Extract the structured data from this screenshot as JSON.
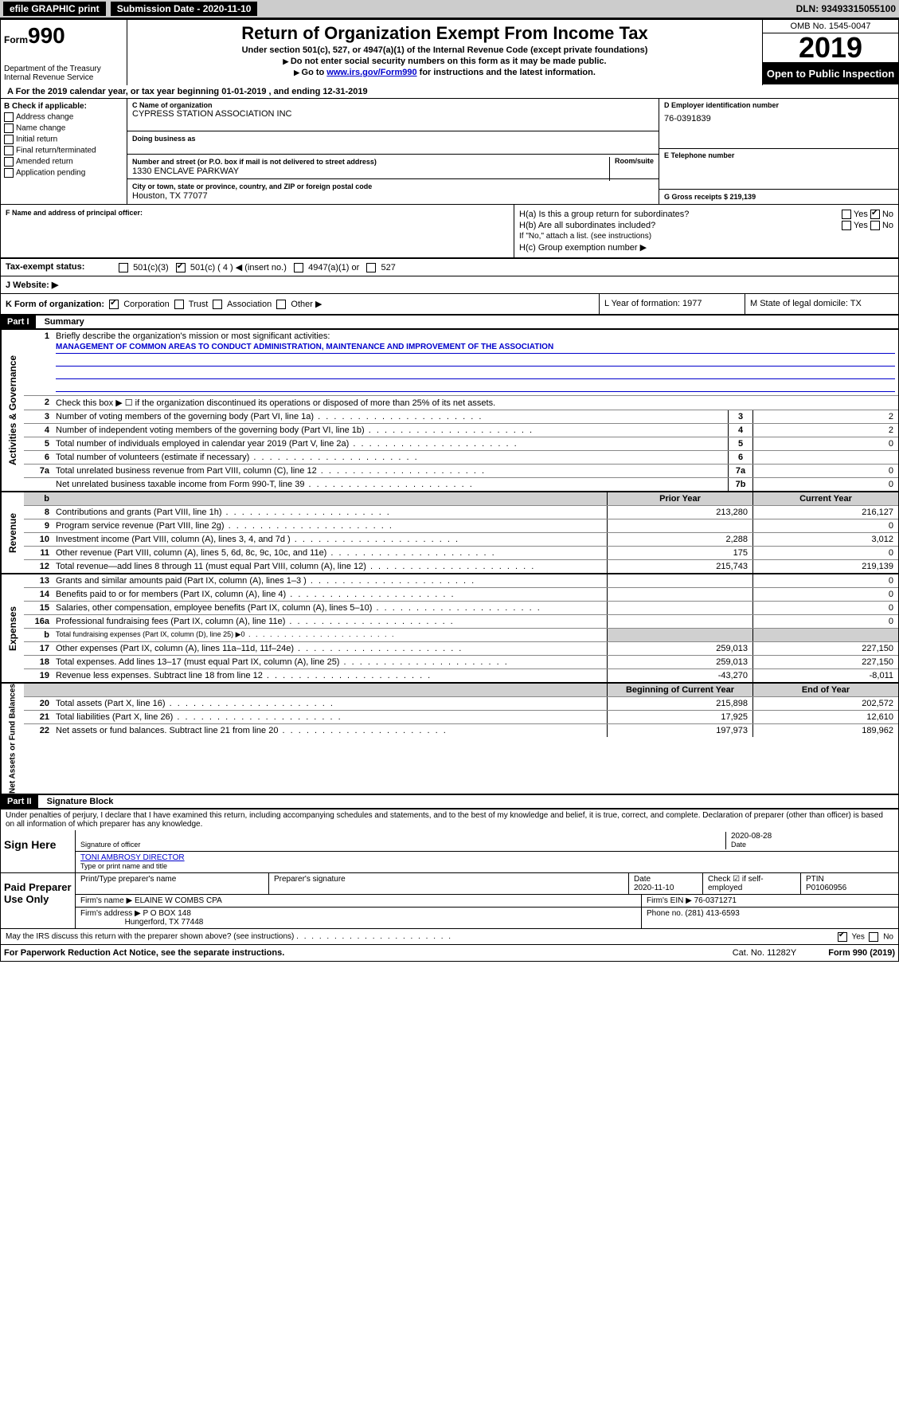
{
  "topbar": {
    "efile": "efile GRAPHIC print",
    "submission_label": "Submission Date - 2020-11-10",
    "dln": "DLN: 93493315055100"
  },
  "header": {
    "form_word": "Form",
    "form_num": "990",
    "title": "Return of Organization Exempt From Income Tax",
    "subtitle1": "Under section 501(c), 527, or 4947(a)(1) of the Internal Revenue Code (except private foundations)",
    "subtitle2": "Do not enter social security numbers on this form as it may be made public.",
    "subtitle3_pre": "Go to ",
    "subtitle3_link": "www.irs.gov/Form990",
    "subtitle3_post": " for instructions and the latest information.",
    "dept": "Department of the Treasury\nInternal Revenue Service",
    "omb": "OMB No. 1545-0047",
    "year": "2019",
    "open": "Open to Public Inspection"
  },
  "tax_year": {
    "text_a": "For the 2019 calendar year, or tax year beginning 01-01-2019",
    "text_b": ", and ending 12-31-2019"
  },
  "section_b": {
    "label": "B Check if applicable:",
    "items": [
      "Address change",
      "Name change",
      "Initial return",
      "Final return/terminated",
      "Amended return",
      "Application pending"
    ],
    "c_label": "C Name of organization",
    "c_name": "CYPRESS STATION ASSOCIATION INC",
    "dba_label": "Doing business as",
    "addr_label": "Number and street (or P.O. box if mail is not delivered to street address)",
    "addr": "1330 ENCLAVE PARKWAY",
    "room": "Room/suite",
    "city_label": "City or town, state or province, country, and ZIP or foreign postal code",
    "city": "Houston, TX  77077",
    "d_label": "D Employer identification number",
    "d_val": "76-0391839",
    "e_label": "E Telephone number",
    "g_label": "G Gross receipts $ 219,139"
  },
  "section_f": {
    "f_label": "F Name and address of principal officer:",
    "ha": "H(a)  Is this a group return for subordinates?",
    "hb": "H(b)  Are all subordinates included?",
    "hb_note": "If \"No,\" attach a list. (see instructions)",
    "hc": "H(c)  Group exemption number ▶",
    "yes": "Yes",
    "no": "No"
  },
  "section_i": {
    "label": "Tax-exempt status:",
    "opts": [
      "501(c)(3)",
      "501(c) ( 4 ) ◀ (insert no.)",
      "4947(a)(1) or",
      "527"
    ],
    "checked": 1
  },
  "section_j": {
    "label": "J   Website: ▶"
  },
  "section_k": {
    "k": "K Form of organization:",
    "opts": [
      "Corporation",
      "Trust",
      "Association",
      "Other ▶"
    ],
    "checked": 0,
    "l_label": "L Year of formation: 1977",
    "m_label": "M State of legal domicile: TX"
  },
  "part1": {
    "header": "Part I",
    "title": "Summary",
    "q1": "Briefly describe the organization's mission or most significant activities:",
    "mission": "MANAGEMENT OF COMMON AREAS TO CONDUCT ADMINISTRATION, MAINTENANCE AND IMPROVEMENT OF THE ASSOCIATION",
    "q2": "Check this box ▶ ☐  if the organization discontinued its operations or disposed of more than 25% of its net assets.",
    "side_gov": "Activities & Governance",
    "side_rev": "Revenue",
    "side_exp": "Expenses",
    "side_net": "Net Assets or Fund Balances",
    "lines_gov": [
      {
        "n": "3",
        "d": "Number of voting members of the governing body (Part VI, line 1a)",
        "b": "3",
        "v": "2"
      },
      {
        "n": "4",
        "d": "Number of independent voting members of the governing body (Part VI, line 1b)",
        "b": "4",
        "v": "2"
      },
      {
        "n": "5",
        "d": "Total number of individuals employed in calendar year 2019 (Part V, line 2a)",
        "b": "5",
        "v": "0"
      },
      {
        "n": "6",
        "d": "Total number of volunteers (estimate if necessary)",
        "b": "6",
        "v": ""
      },
      {
        "n": "7a",
        "d": "Total unrelated business revenue from Part VIII, column (C), line 12",
        "b": "7a",
        "v": "0"
      },
      {
        "n": "",
        "d": "Net unrelated business taxable income from Form 990-T, line 39",
        "b": "7b",
        "v": "0"
      }
    ],
    "col_prior": "Prior Year",
    "col_current": "Current Year",
    "lines_rev": [
      {
        "n": "8",
        "d": "Contributions and grants (Part VIII, line 1h)",
        "p": "213,280",
        "c": "216,127"
      },
      {
        "n": "9",
        "d": "Program service revenue (Part VIII, line 2g)",
        "p": "",
        "c": "0"
      },
      {
        "n": "10",
        "d": "Investment income (Part VIII, column (A), lines 3, 4, and 7d )",
        "p": "2,288",
        "c": "3,012"
      },
      {
        "n": "11",
        "d": "Other revenue (Part VIII, column (A), lines 5, 6d, 8c, 9c, 10c, and 11e)",
        "p": "175",
        "c": "0"
      },
      {
        "n": "12",
        "d": "Total revenue—add lines 8 through 11 (must equal Part VIII, column (A), line 12)",
        "p": "215,743",
        "c": "219,139"
      }
    ],
    "lines_exp": [
      {
        "n": "13",
        "d": "Grants and similar amounts paid (Part IX, column (A), lines 1–3 )",
        "p": "",
        "c": "0"
      },
      {
        "n": "14",
        "d": "Benefits paid to or for members (Part IX, column (A), line 4)",
        "p": "",
        "c": "0"
      },
      {
        "n": "15",
        "d": "Salaries, other compensation, employee benefits (Part IX, column (A), lines 5–10)",
        "p": "",
        "c": "0"
      },
      {
        "n": "16a",
        "d": "Professional fundraising fees (Part IX, column (A), line 11e)",
        "p": "",
        "c": "0"
      },
      {
        "n": "b",
        "d": "Total fundraising expenses (Part IX, column (D), line 25) ▶0",
        "p": "grey",
        "c": "grey"
      },
      {
        "n": "17",
        "d": "Other expenses (Part IX, column (A), lines 11a–11d, 11f–24e)",
        "p": "259,013",
        "c": "227,150"
      },
      {
        "n": "18",
        "d": "Total expenses. Add lines 13–17 (must equal Part IX, column (A), line 25)",
        "p": "259,013",
        "c": "227,150"
      },
      {
        "n": "19",
        "d": "Revenue less expenses. Subtract line 18 from line 12",
        "p": "-43,270",
        "c": "-8,011"
      }
    ],
    "col_begin": "Beginning of Current Year",
    "col_end": "End of Year",
    "lines_net": [
      {
        "n": "20",
        "d": "Total assets (Part X, line 16)",
        "p": "215,898",
        "c": "202,572"
      },
      {
        "n": "21",
        "d": "Total liabilities (Part X, line 26)",
        "p": "17,925",
        "c": "12,610"
      },
      {
        "n": "22",
        "d": "Net assets or fund balances. Subtract line 21 from line 20",
        "p": "197,973",
        "c": "189,962"
      }
    ]
  },
  "part2": {
    "header": "Part II",
    "title": "Signature Block",
    "perjury": "Under penalties of perjury, I declare that I have examined this return, including accompanying schedules and statements, and to the best of my knowledge and belief, it is true, correct, and complete. Declaration of preparer (other than officer) is based on all information of which preparer has any knowledge.",
    "sign_here": "Sign Here",
    "sig_officer": "Signature of officer",
    "sig_date": "2020-08-28",
    "date_label": "Date",
    "officer_name": "TONI AMBROSY  DIRECTOR",
    "type_name": "Type or print name and title",
    "paid": "Paid Preparer Use Only",
    "prep_name_label": "Print/Type preparer's name",
    "prep_sig_label": "Preparer's signature",
    "prep_date_label": "Date",
    "prep_date": "2020-11-10",
    "check_label": "Check ☑ if self-employed",
    "ptin_label": "PTIN",
    "ptin": "P01060956",
    "firm_name_label": "Firm's name    ▶",
    "firm_name": "ELAINE W COMBS CPA",
    "firm_ein_label": "Firm's EIN ▶ 76-0371271",
    "firm_addr_label": "Firm's address ▶",
    "firm_addr": "P O BOX 148",
    "firm_city": "Hungerford, TX  77448",
    "firm_phone": "Phone no. (281) 413-6593",
    "discuss": "May the IRS discuss this return with the preparer shown above? (see instructions)",
    "discuss_yes": "Yes",
    "discuss_no": "No"
  },
  "footer": {
    "left": "For Paperwork Reduction Act Notice, see the separate instructions.",
    "mid": "Cat. No. 11282Y",
    "right": "Form 990 (2019)"
  }
}
